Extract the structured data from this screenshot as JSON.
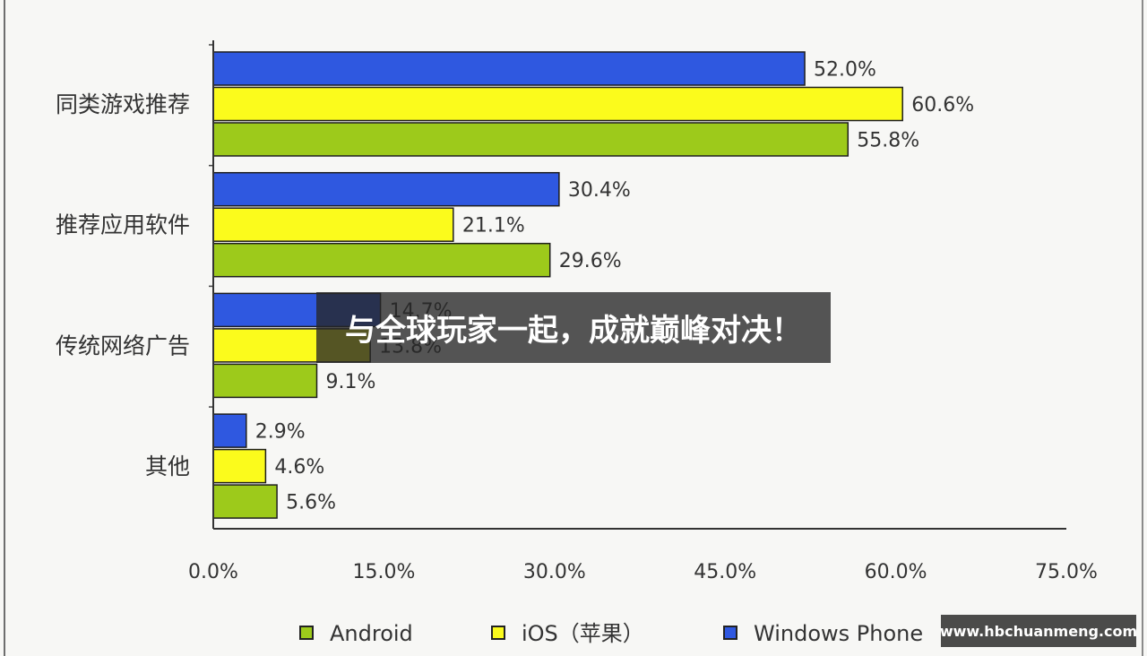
{
  "overlay": {
    "banner_text": "与全球玩家一起，成就巅峰对决！",
    "watermark_text": "www.hbchuanmeng.com"
  },
  "chart_data": {
    "type": "bar",
    "orientation": "horizontal",
    "categories": [
      "同类游戏推荐",
      "推荐应用软件",
      "传统网络广告",
      "其他"
    ],
    "series": [
      {
        "name": "Windows Phone",
        "color": "#2f58e0",
        "values": [
          52.0,
          30.4,
          14.7,
          2.9
        ],
        "data_labels": [
          "52.0%",
          "30.4%",
          "14.7%",
          "2.9%"
        ]
      },
      {
        "name": "iOS（苹果）",
        "color": "#fbfb1c",
        "values": [
          60.6,
          21.1,
          13.8,
          4.6
        ],
        "data_labels": [
          "60.6%",
          "21.1%",
          "13.8%",
          "4.6%"
        ]
      },
      {
        "name": "Android",
        "color": "#9dca1b",
        "values": [
          55.8,
          29.6,
          9.1,
          5.6
        ],
        "data_labels": [
          "55.8%",
          "29.6%",
          "9.1%",
          "5.6%"
        ]
      }
    ],
    "xlim": [
      0,
      75
    ],
    "xticks": [
      0,
      15,
      30,
      45,
      60,
      75
    ],
    "xtick_labels": [
      "0.0%",
      "15.0%",
      "30.0%",
      "45.0%",
      "60.0%",
      "75.0%"
    ],
    "grid": false,
    "legend": {
      "position": "bottom",
      "order": [
        2,
        1,
        0
      ]
    }
  }
}
